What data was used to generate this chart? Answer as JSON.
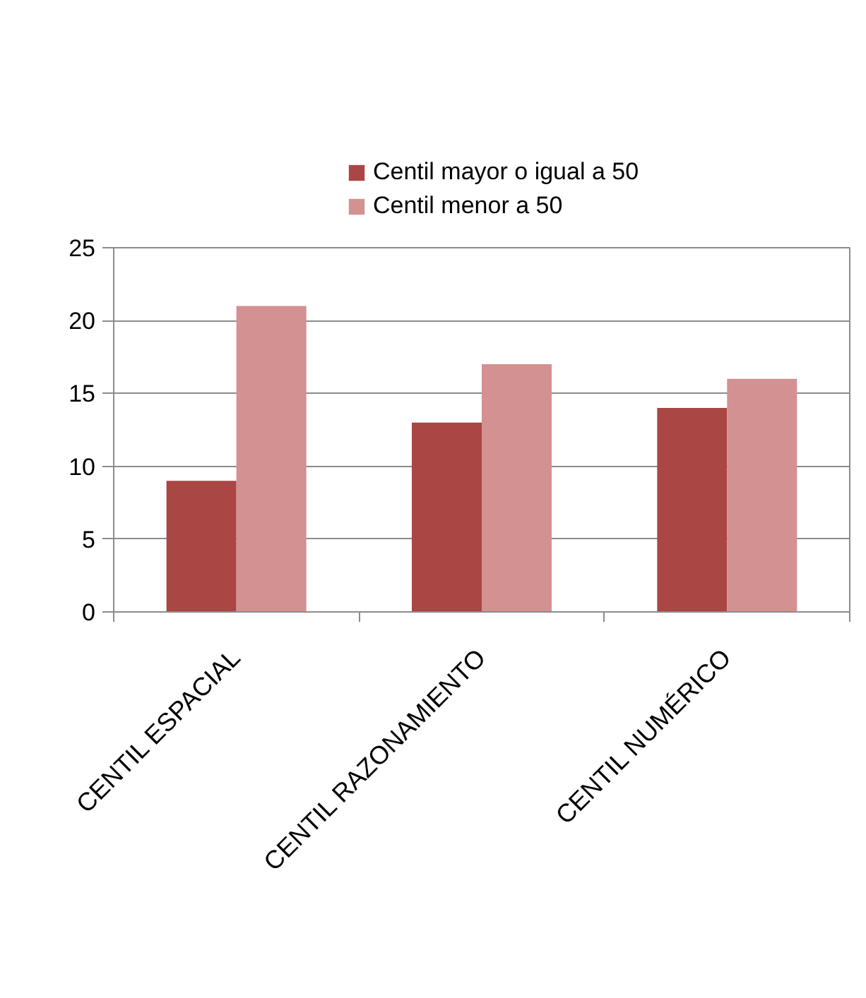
{
  "chart_data": {
    "type": "bar",
    "categories": [
      "CENTIL ESPACIAL",
      "CENTIL RAZONAMIENTO",
      "CENTIL NUMÉRICO"
    ],
    "series": [
      {
        "name": "Centil mayor o igual a 50",
        "color": "#aa4643",
        "values": [
          9,
          13,
          14
        ]
      },
      {
        "name": "Centil menor a 50",
        "color": "#d39191",
        "values": [
          21,
          17,
          16
        ]
      }
    ],
    "ylim": [
      0,
      25
    ],
    "yticks": [
      0,
      5,
      10,
      15,
      20,
      25
    ],
    "grid": "y",
    "legend": "top"
  }
}
